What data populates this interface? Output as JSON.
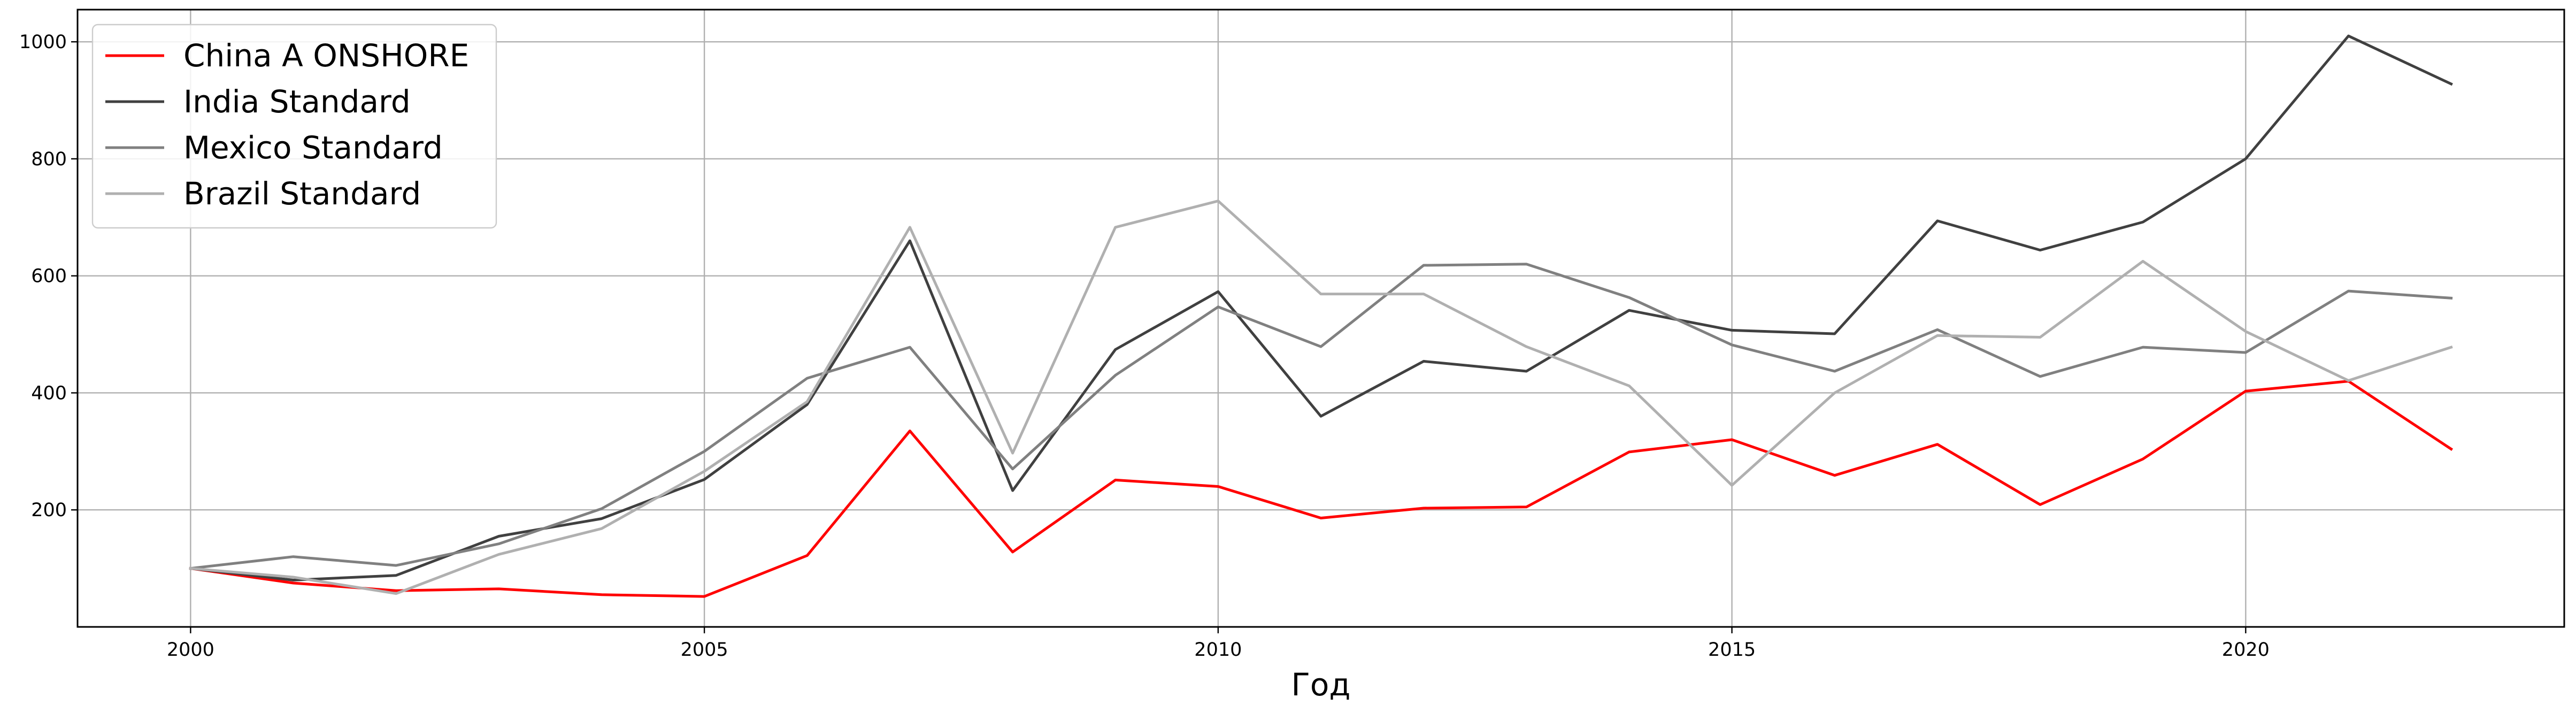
{
  "chart_data": {
    "type": "line",
    "title": "",
    "xlabel": "Год",
    "ylabel": "",
    "x": [
      2000,
      2001,
      2002,
      2003,
      2004,
      2005,
      2006,
      2007,
      2008,
      2009,
      2010,
      2011,
      2012,
      2013,
      2014,
      2015,
      2016,
      2017,
      2018,
      2019,
      2020,
      2021,
      2022
    ],
    "xlim": [
      1998.9,
      2023.1
    ],
    "ylim": [
      0,
      1055
    ],
    "xticks": [
      2000,
      2005,
      2010,
      2015,
      2020
    ],
    "yticks": [
      200,
      400,
      600,
      800,
      1000
    ],
    "grid": true,
    "legend": "top-left",
    "series": [
      {
        "name": "China A ONSHORE",
        "color": "#ff0000",
        "values": [
          100,
          75,
          62,
          65,
          55,
          52,
          122,
          335,
          128,
          251,
          240,
          186,
          203,
          205,
          299,
          320,
          259,
          312,
          209,
          287,
          403,
          420,
          304
        ]
      },
      {
        "name": "India Standard",
        "color": "#404040",
        "values": [
          100,
          80,
          88,
          155,
          185,
          252,
          380,
          660,
          233,
          474,
          573,
          360,
          454,
          437,
          541,
          507,
          501,
          694,
          644,
          692,
          800,
          1010,
          928
        ]
      },
      {
        "name": "Mexico Standard",
        "color": "#808080",
        "values": [
          100,
          120,
          105,
          142,
          202,
          300,
          425,
          478,
          270,
          430,
          547,
          479,
          618,
          620,
          563,
          482,
          437,
          508,
          428,
          478,
          469,
          574,
          562
        ]
      },
      {
        "name": "Brazil Standard",
        "color": "#b0b0b0",
        "values": [
          100,
          85,
          57,
          124,
          168,
          266,
          385,
          683,
          297,
          683,
          728,
          569,
          569,
          479,
          412,
          242,
          400,
          498,
          495,
          625,
          505,
          421,
          478
        ]
      }
    ]
  }
}
